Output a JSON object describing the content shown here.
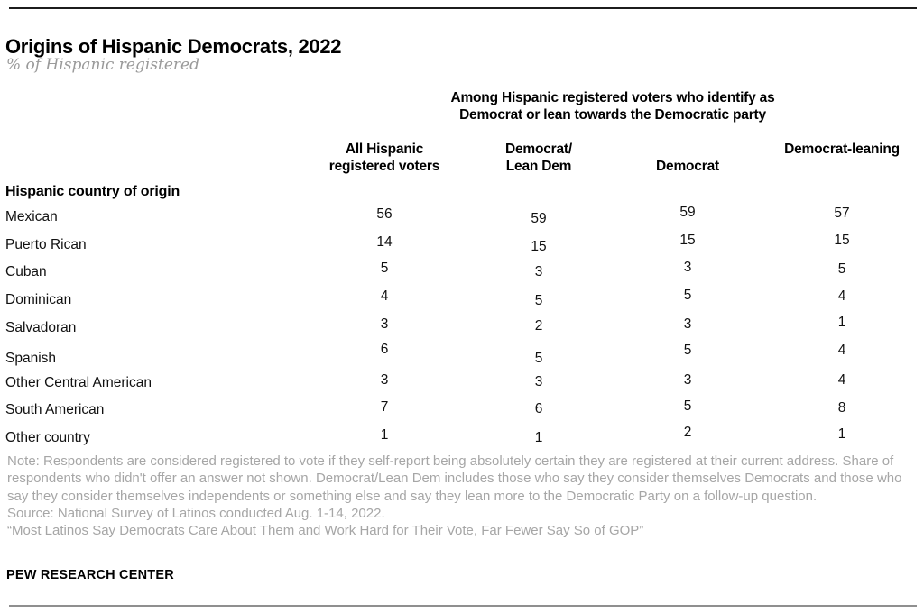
{
  "header": {
    "title": "Origins of Hispanic Democrats, 2022",
    "subtitle": "% of Hispanic registered"
  },
  "table": {
    "spanner": "Among Hispanic registered voters who identify as Democrat or lean towards the Democratic party",
    "columns": [
      "All Hispanic registered voters",
      "Democrat/ Lean Dem",
      "Democrat",
      "Democrat-leaning"
    ],
    "section_label": "Hispanic country of origin",
    "rows": [
      {
        "label": "Mexican",
        "values": [
          56,
          59,
          59,
          57
        ]
      },
      {
        "label": "Puerto Rican",
        "values": [
          14,
          15,
          15,
          15
        ]
      },
      {
        "label": "Cuban",
        "values": [
          5,
          3,
          3,
          5
        ]
      },
      {
        "label": "Dominican",
        "values": [
          4,
          5,
          5,
          4
        ]
      },
      {
        "label": "Salvadoran",
        "values": [
          3,
          2,
          3,
          1
        ]
      },
      {
        "label": "Spanish",
        "values": [
          6,
          5,
          5,
          4
        ]
      },
      {
        "label": "Other Central American",
        "values": [
          3,
          3,
          3,
          4
        ]
      },
      {
        "label": "South American",
        "values": [
          7,
          6,
          5,
          8
        ]
      },
      {
        "label": "Other country",
        "values": [
          1,
          1,
          2,
          1
        ]
      }
    ]
  },
  "footer": {
    "note": "Note: Respondents are considered registered to vote if they self-report being absolutely certain they are registered at their current address. Share of respondents who didn't offer an answer not shown. Democrat/Lean Dem includes those who say they consider themselves Democrats and those who say they consider themselves independents or something else and say they lean more to the Democratic Party on a follow-up question.",
    "source": "Source: National Survey of Latinos conducted Aug. 1-14, 2022.",
    "quote": "“Most Latinos Say Democrats Care About Them and Work Hard for Their Vote, Far Fewer Say So of GOP”",
    "brand": "PEW RESEARCH CENTER"
  },
  "colors": {
    "text": "#000000",
    "muted_text": "#a6a6a6",
    "subtitle_text": "#9a9a9a",
    "rule_top": "#1c1c1c",
    "rule_bottom": "#8f8f8f"
  },
  "chart_data": {
    "type": "table",
    "title": "Origins of Hispanic Democrats, 2022",
    "subtitle": "% of Hispanic registered",
    "column_group_header": "Among Hispanic registered voters who identify as Democrat or lean towards the Democratic party",
    "row_group_header": "Hispanic country of origin",
    "categories": [
      "Mexican",
      "Puerto Rican",
      "Cuban",
      "Dominican",
      "Salvadoran",
      "Spanish",
      "Other Central American",
      "South American",
      "Other country"
    ],
    "series": [
      {
        "name": "All Hispanic registered voters",
        "values": [
          56,
          14,
          5,
          4,
          3,
          6,
          3,
          7,
          1
        ]
      },
      {
        "name": "Democrat/Lean Dem",
        "values": [
          59,
          15,
          3,
          5,
          2,
          5,
          3,
          6,
          1
        ]
      },
      {
        "name": "Democrat",
        "values": [
          59,
          15,
          3,
          5,
          3,
          5,
          3,
          5,
          2
        ]
      },
      {
        "name": "Democrat-leaning",
        "values": [
          57,
          15,
          5,
          4,
          1,
          4,
          4,
          8,
          1
        ]
      }
    ],
    "unit": "percent",
    "source_note": "National Survey of Latinos conducted Aug. 1-14, 2022."
  }
}
